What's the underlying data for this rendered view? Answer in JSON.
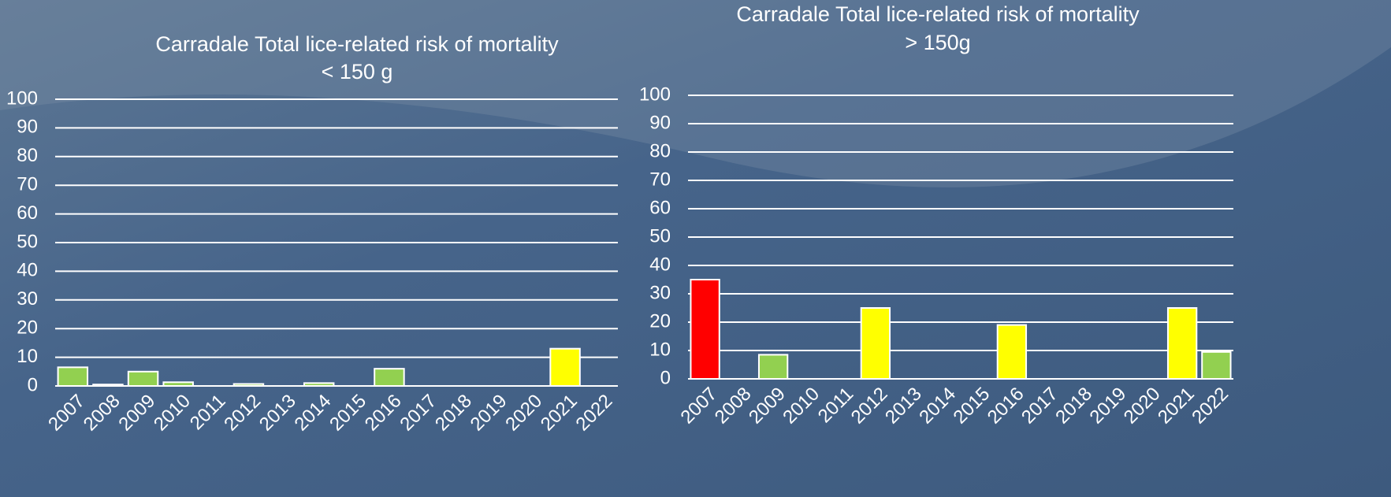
{
  "chart_data": [
    {
      "type": "bar",
      "title": [
        "Carradale Total lice-related risk of mortality",
        "< 150 g"
      ],
      "categories": [
        "2007",
        "2008",
        "2009",
        "2010",
        "2011",
        "2012",
        "2013",
        "2014",
        "2015",
        "2016",
        "2017",
        "2018",
        "2019",
        "2020",
        "2021",
        "2022"
      ],
      "values": [
        6.5,
        0.5,
        5,
        1.3,
        0,
        0.7,
        0,
        1,
        0,
        6,
        0,
        0,
        0,
        0,
        13,
        0
      ],
      "colors": [
        "#92d050",
        "#92d050",
        "#92d050",
        "#92d050",
        "#92d050",
        "#92d050",
        "#92d050",
        "#92d050",
        "#92d050",
        "#92d050",
        "#92d050",
        "#92d050",
        "#92d050",
        "#92d050",
        "#ffff00",
        "#92d050"
      ],
      "ylim": [
        0,
        100
      ],
      "yticks": [
        0,
        10,
        20,
        30,
        40,
        50,
        60,
        70,
        80,
        90,
        100
      ],
      "grid": true
    },
    {
      "type": "bar",
      "title": [
        "Carradale Total lice-related risk of mortality",
        "> 150g"
      ],
      "categories": [
        "2007",
        "2008",
        "2009",
        "2010",
        "2011",
        "2012",
        "2013",
        "2014",
        "2015",
        "2016",
        "2017",
        "2018",
        "2019",
        "2020",
        "2021",
        "2022"
      ],
      "values": [
        35,
        0,
        8.5,
        0,
        0,
        25,
        0,
        0,
        0,
        19,
        0,
        0,
        0,
        0,
        25,
        9.5
      ],
      "colors": [
        "#ff0000",
        "#92d050",
        "#92d050",
        "#92d050",
        "#92d050",
        "#ffff00",
        "#92d050",
        "#92d050",
        "#92d050",
        "#ffff00",
        "#92d050",
        "#92d050",
        "#92d050",
        "#92d050",
        "#ffff00",
        "#92d050"
      ],
      "ylim": [
        0,
        100
      ],
      "yticks": [
        0,
        10,
        20,
        30,
        40,
        50,
        60,
        70,
        80,
        90,
        100
      ],
      "grid": true
    }
  ]
}
